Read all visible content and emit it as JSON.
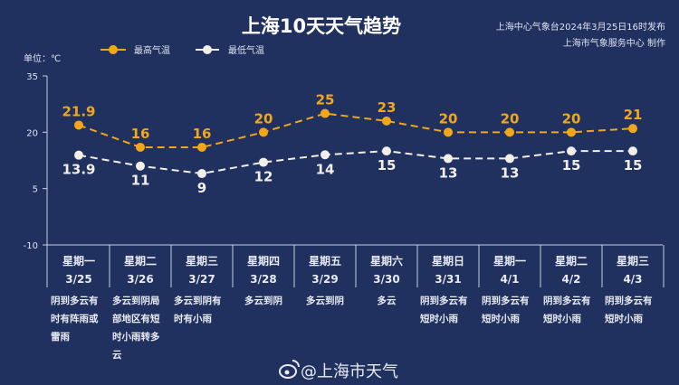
{
  "header": {
    "title": "上海10天天气趋势",
    "issuer": "上海中心气象台2024年3月25日16时发布",
    "producer": "上海市气象服务中心 制作",
    "watermark": "@上海市天气"
  },
  "colors": {
    "background": "#20305f",
    "high": "#f2a71b",
    "low": "#f2eee8",
    "axis": "#c9d0e2"
  },
  "chart_data": {
    "type": "line",
    "title": "上海10天天气趋势",
    "unit_label": "单位：℃",
    "ylim": [
      -10,
      35
    ],
    "yticks": [
      "35",
      "20",
      "5",
      "-10"
    ],
    "ytick_values": [
      35,
      20,
      5,
      -10
    ],
    "categories": [
      "3/25",
      "3/26",
      "3/27",
      "3/28",
      "3/29",
      "3/30",
      "3/31",
      "4/1",
      "4/2",
      "4/3"
    ],
    "weekdays": [
      "星期一",
      "星期二",
      "星期三",
      "星期四",
      "星期五",
      "星期六",
      "星期日",
      "星期一",
      "星期二",
      "星期三"
    ],
    "weather": [
      [
        "阴到多云有",
        "时有阵雨或",
        "雷雨"
      ],
      [
        "多云到阴局",
        "部地区有短",
        "时小雨转多",
        "云"
      ],
      [
        "多云到阴有",
        "时有小雨"
      ],
      [
        "多云到阴"
      ],
      [
        "多云到阴"
      ],
      [
        "多云"
      ],
      [
        "阴到多云有",
        "短时小雨"
      ],
      [
        "阴到多云有",
        "短时小雨"
      ],
      [
        "阴到多云有",
        "短时小雨"
      ],
      [
        "阴到多云有",
        "短时小雨"
      ]
    ],
    "series": [
      {
        "name": "最高气温",
        "values": [
          21.9,
          16,
          16,
          20,
          25,
          23,
          20,
          20,
          20,
          21
        ],
        "labels": [
          "21.9",
          "16",
          "16",
          "20",
          "25",
          "23",
          "20",
          "20",
          "20",
          "21"
        ]
      },
      {
        "name": "最低气温",
        "values": [
          13.9,
          11,
          9,
          12,
          14,
          15,
          13,
          13,
          15,
          15
        ],
        "labels": [
          "13.9",
          "11",
          "9",
          "12",
          "14",
          "15",
          "13",
          "13",
          "15",
          "15"
        ]
      }
    ],
    "legend": "top-left"
  }
}
